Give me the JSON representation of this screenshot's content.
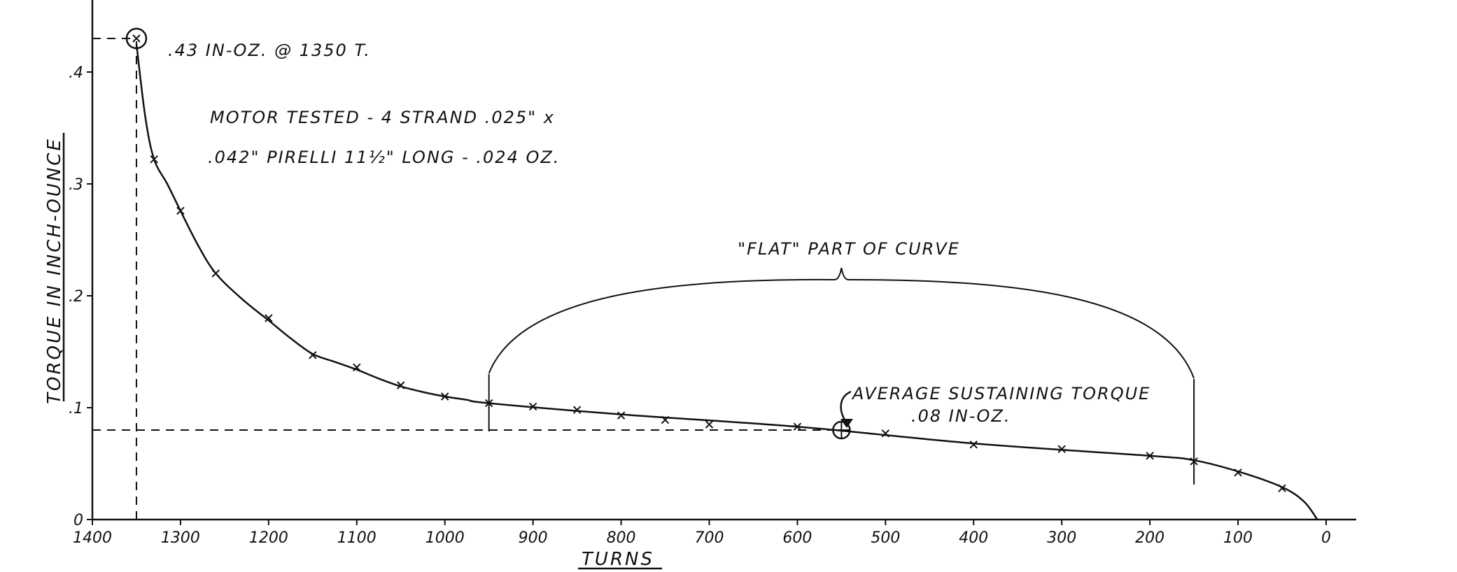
{
  "chart_data": {
    "type": "scatter",
    "title": "",
    "xlabel": "TURNS",
    "ylabel": "TORQUE IN INCH-OUNCE",
    "xlim": [
      1400,
      0
    ],
    "ylim": [
      0,
      0.46
    ],
    "x_ticks": [
      {
        "v": 1400,
        "label": "1400"
      },
      {
        "v": 1300,
        "label": "1300"
      },
      {
        "v": 1200,
        "label": "1200"
      },
      {
        "v": 1100,
        "label": "1100"
      },
      {
        "v": 1000,
        "label": "1000"
      },
      {
        "v": 900,
        "label": "900"
      },
      {
        "v": 800,
        "label": "800"
      },
      {
        "v": 700,
        "label": "700"
      },
      {
        "v": 600,
        "label": "600"
      },
      {
        "v": 500,
        "label": "500"
      },
      {
        "v": 400,
        "label": "400"
      },
      {
        "v": 300,
        "label": "300"
      },
      {
        "v": 200,
        "label": "200"
      },
      {
        "v": 100,
        "label": "100"
      },
      {
        "v": 0,
        "label": "0"
      }
    ],
    "y_ticks": [
      {
        "v": 0,
        "label": "0"
      },
      {
        "v": 0.1,
        "label": ".1"
      },
      {
        "v": 0.2,
        "label": ".2"
      },
      {
        "v": 0.3,
        "label": ".3"
      },
      {
        "v": 0.4,
        "label": ".4"
      }
    ],
    "series": [
      {
        "points": [
          {
            "x": 1350,
            "y": 0.43
          },
          {
            "x": 1330,
            "y": 0.322
          },
          {
            "x": 1300,
            "y": 0.276
          },
          {
            "x": 1260,
            "y": 0.22
          },
          {
            "x": 1200,
            "y": 0.18
          },
          {
            "x": 1150,
            "y": 0.147
          },
          {
            "x": 1100,
            "y": 0.136
          },
          {
            "x": 1050,
            "y": 0.12
          },
          {
            "x": 1000,
            "y": 0.11
          },
          {
            "x": 950,
            "y": 0.104
          },
          {
            "x": 900,
            "y": 0.101
          },
          {
            "x": 850,
            "y": 0.098
          },
          {
            "x": 800,
            "y": 0.093
          },
          {
            "x": 750,
            "y": 0.089
          },
          {
            "x": 700,
            "y": 0.085
          },
          {
            "x": 600,
            "y": 0.083
          },
          {
            "x": 500,
            "y": 0.077
          },
          {
            "x": 400,
            "y": 0.067
          },
          {
            "x": 300,
            "y": 0.063
          },
          {
            "x": 200,
            "y": 0.057
          },
          {
            "x": 150,
            "y": 0.052
          },
          {
            "x": 100,
            "y": 0.042
          },
          {
            "x": 50,
            "y": 0.028
          }
        ],
        "curve": [
          [
            1350,
            0.425
          ],
          [
            1340,
            0.36
          ],
          [
            1330,
            0.322
          ],
          [
            1315,
            0.3
          ],
          [
            1300,
            0.276
          ],
          [
            1280,
            0.245
          ],
          [
            1260,
            0.22
          ],
          [
            1230,
            0.197
          ],
          [
            1200,
            0.178
          ],
          [
            1175,
            0.162
          ],
          [
            1150,
            0.148
          ],
          [
            1125,
            0.141
          ],
          [
            1100,
            0.134
          ],
          [
            1075,
            0.126
          ],
          [
            1050,
            0.119
          ],
          [
            1025,
            0.114
          ],
          [
            1000,
            0.11
          ],
          [
            975,
            0.107
          ],
          [
            950,
            0.104
          ],
          [
            800,
            0.094
          ],
          [
            600,
            0.083
          ],
          [
            400,
            0.068
          ],
          [
            200,
            0.057
          ],
          [
            150,
            0.053
          ],
          [
            100,
            0.043
          ],
          [
            50,
            0.029
          ],
          [
            25,
            0.016
          ],
          [
            10,
            0.0
          ]
        ]
      }
    ],
    "reference_lines": [
      {
        "orientation": "horizontal",
        "y": 0.43,
        "from_x": 1400,
        "to_x": 1350
      },
      {
        "orientation": "vertical",
        "x": 1350,
        "from_y": 0,
        "to_y": 0.43
      },
      {
        "orientation": "horizontal",
        "y": 0.08,
        "from_x": 1400,
        "to_x": 550
      }
    ],
    "flat_region": {
      "from_x": 950,
      "to_x": 150,
      "label": "\"FLAT\" PART OF CURVE"
    },
    "annotations": {
      "peak": ".43 IN-OZ. @ 1350 T.",
      "motor_line1": "MOTOR TESTED - 4 STRAND .025\" x",
      "motor_line2": ".042\" PIRELLI 11½\" LONG - .024 OZ.",
      "avg_line1": "AVERAGE SUSTAINING TORQUE",
      "avg_line2": ".08 IN-OZ."
    },
    "average_point": {
      "x": 550,
      "y": 0.08
    }
  }
}
